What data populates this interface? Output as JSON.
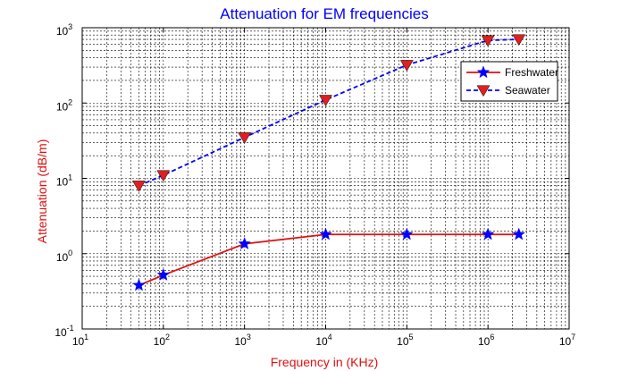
{
  "chart_data": {
    "type": "line",
    "title": "Attenuation for EM frequencies",
    "xlabel": "Frequency in (KHz)",
    "ylabel": "Attenuation (dB/m)",
    "xscale": "log",
    "yscale": "log",
    "xlim": [
      10,
      10000000
    ],
    "ylim": [
      0.1,
      1000
    ],
    "x_ticks": [
      {
        "base": "10",
        "exp": "1"
      },
      {
        "base": "10",
        "exp": "2"
      },
      {
        "base": "10",
        "exp": "3"
      },
      {
        "base": "10",
        "exp": "4"
      },
      {
        "base": "10",
        "exp": "5"
      },
      {
        "base": "10",
        "exp": "6"
      },
      {
        "base": "10",
        "exp": "7"
      }
    ],
    "y_ticks": [
      {
        "base": "10",
        "exp": "-1"
      },
      {
        "base": "10",
        "exp": "0"
      },
      {
        "base": "10",
        "exp": "1"
      },
      {
        "base": "10",
        "exp": "2"
      },
      {
        "base": "10",
        "exp": "3"
      }
    ],
    "grid": true,
    "legend": "top-right",
    "series": [
      {
        "name": "Freshwater",
        "color": "#e01010",
        "marker_color": "#0000ff",
        "marker": "star",
        "line_style": "solid",
        "x": [
          50,
          100,
          1000,
          10000,
          100000,
          1000000,
          2400000
        ],
        "y": [
          0.38,
          0.52,
          1.35,
          1.8,
          1.8,
          1.8,
          1.8
        ]
      },
      {
        "name": "Seawater",
        "color": "#0000ff",
        "marker_color": "#e02020",
        "marker": "triangle-down",
        "line_style": "dashed",
        "x": [
          50,
          100,
          1000,
          10000,
          100000,
          1000000,
          2400000
        ],
        "y": [
          8,
          11,
          35,
          110,
          320,
          680,
          700
        ]
      }
    ]
  }
}
